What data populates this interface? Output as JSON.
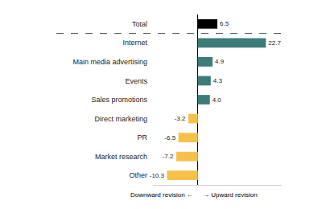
{
  "chart_data": {
    "type": "bar",
    "orientation": "horizontal",
    "categories": [
      "Total",
      "Internet",
      "Main media advertising",
      "Events",
      "Sales promotions",
      "Direct marketing",
      "PR",
      "Market research",
      "Other"
    ],
    "values": [
      6.5,
      22.7,
      4.9,
      4.3,
      4.0,
      -3.2,
      -6.5,
      -7.2,
      -10.3
    ],
    "value_labels": [
      "6.5",
      "22.7",
      "4.9",
      "4.3",
      "4.0",
      "-3.2",
      "-6.5",
      "-7.2",
      "-10.3"
    ],
    "colors": [
      "#000000",
      "#3c7d7a",
      "#3c7d7a",
      "#3c7d7a",
      "#3c7d7a",
      "#f6c14b",
      "#f6c14b",
      "#f6c14b",
      "#f6c14b"
    ],
    "xlim": [
      -15,
      28
    ],
    "grid": false,
    "data_labels": true,
    "tick_labels": "y",
    "annotations": [
      "Downward revision ←",
      "→ Upward revision"
    ]
  }
}
